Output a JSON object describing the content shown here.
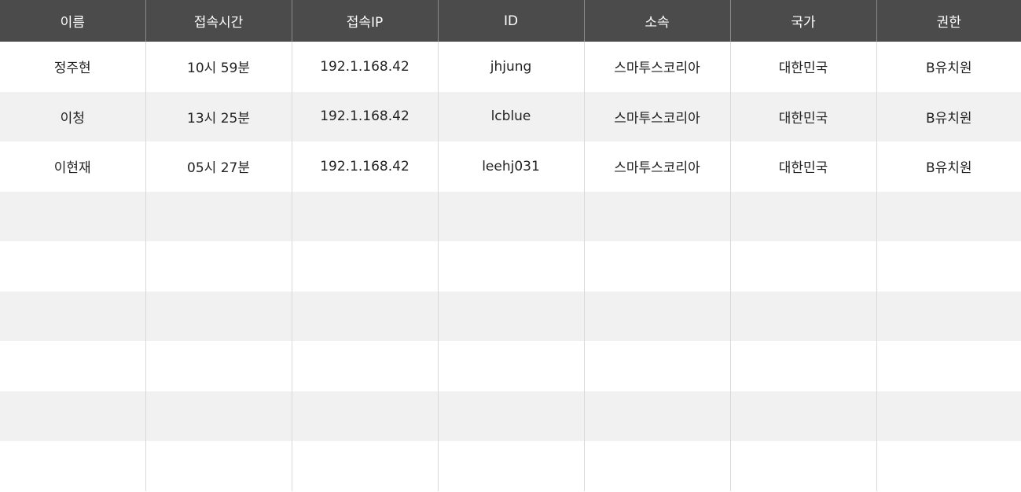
{
  "table": {
    "columns": [
      "이름",
      "접속시간",
      "접속IP",
      "ID",
      "소속",
      "국가",
      "권한"
    ],
    "rows": [
      [
        "정주현",
        "10시 59분",
        "192.1.168.42",
        "jhjung",
        "스마투스코리아",
        "대한민국",
        "B유치원"
      ],
      [
        "이청",
        "13시 25분",
        "192.1.168.42",
        "lcblue",
        "스마투스코리아",
        "대한민국",
        "B유치원"
      ],
      [
        "이현재",
        "05시 27분",
        "192.1.168.42",
        "leehj031",
        "스마투스코리아",
        "대한민국",
        "B유치원"
      ]
    ],
    "empty_row_count": 6
  },
  "colors": {
    "header_bg": "#4b4b4b",
    "header_text": "#ffffff",
    "row_alt_bg": "#f1f1f1"
  }
}
